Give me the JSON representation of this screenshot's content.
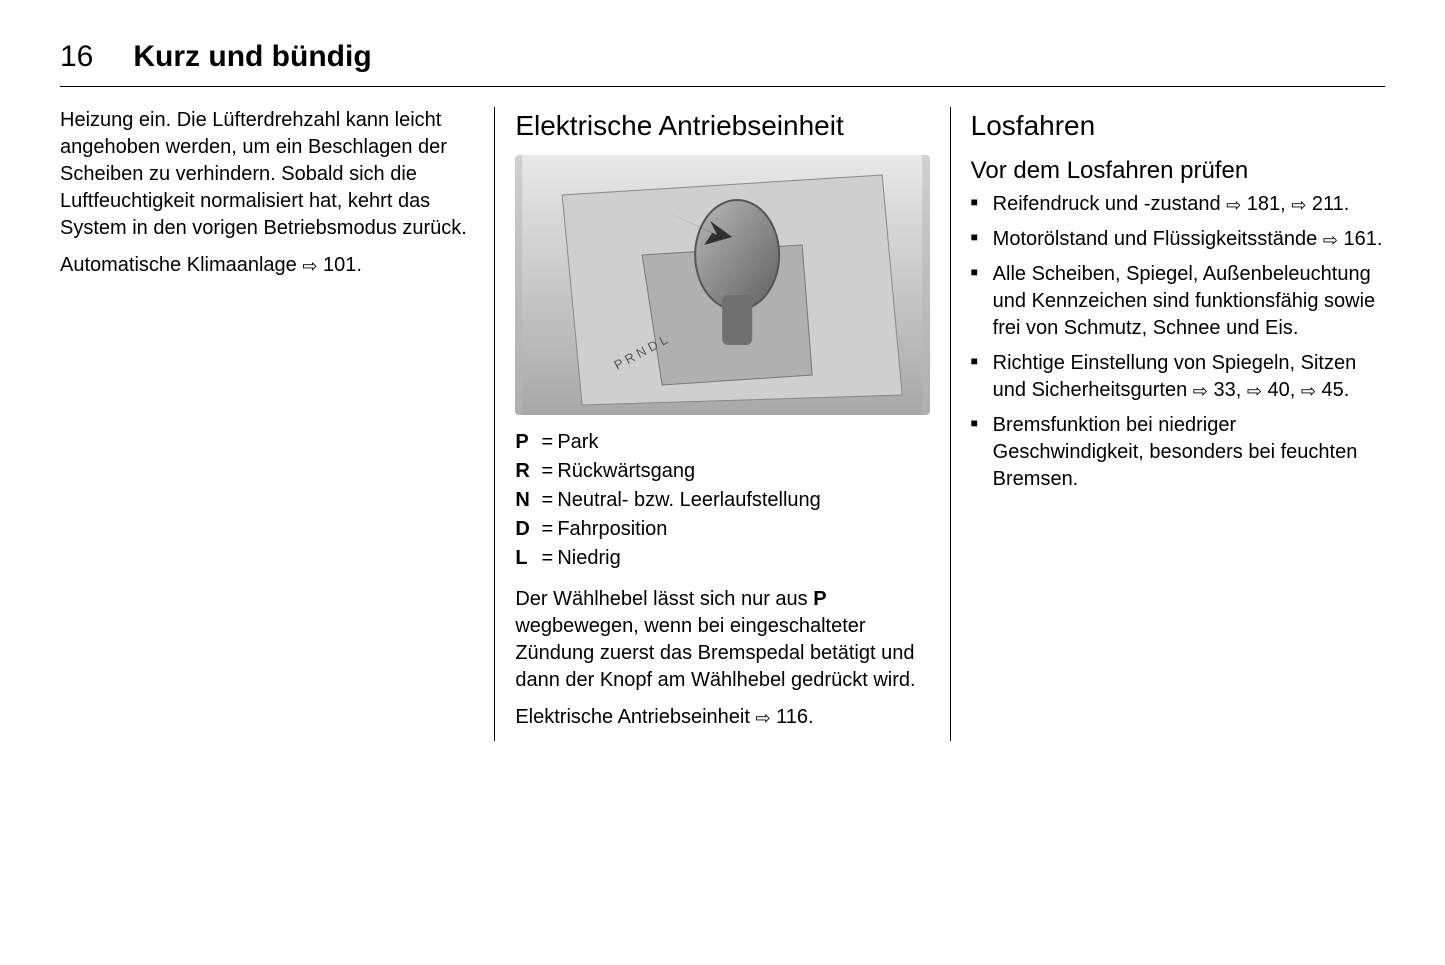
{
  "header": {
    "page_number": "16",
    "chapter": "Kurz und bündig"
  },
  "col1": {
    "para1": "Heizung ein. Die Lüfterdrehzahl kann leicht angehoben werden, um ein Beschlagen der Scheiben zu verhindern. Sobald sich die Luftfeuchtigkeit normalisiert hat, kehrt das System in den vorigen Betriebsmodus zurück.",
    "para2_pre": "Automatische Klimaanlage ",
    "para2_ref": "101."
  },
  "col2": {
    "heading": "Elektrische Antriebseinheit",
    "gears": [
      {
        "key": "P",
        "val": "Park"
      },
      {
        "key": "R",
        "val": "Rückwärtsgang"
      },
      {
        "key": "N",
        "val": "Neutral- bzw. Leerlaufstellung"
      },
      {
        "key": "D",
        "val": "Fahrposition"
      },
      {
        "key": "L",
        "val": "Niedrig"
      }
    ],
    "para1_a": "Der Wählhebel lässt sich nur aus ",
    "para1_bold": "P",
    "para1_b": " wegbewegen, wenn bei eingeschalteter Zündung zuerst das Bremspedal betätigt und dann der Knopf am Wählhebel gedrückt wird.",
    "para2_pre": "Elektrische Antriebseinheit ",
    "para2_ref": "116."
  },
  "col3": {
    "heading": "Losfahren",
    "subheading": "Vor dem Losfahren prüfen",
    "items": [
      {
        "pre": "Reifendruck und -zustand ",
        "refs": [
          "181,",
          "211."
        ]
      },
      {
        "pre": "Motorölstand und Flüssigkeitsstände ",
        "refs": [
          "161."
        ]
      },
      {
        "text": "Alle Scheiben, Spiegel, Außenbeleuchtung und Kennzeichen sind funktionsfähig sowie frei von Schmutz, Schnee und Eis."
      },
      {
        "pre": "Richtige Einstellung von Spiegeln, Sitzen und Sicherheitsgurten ",
        "refs": [
          "33,",
          "40,",
          "45."
        ]
      },
      {
        "text": "Bremsfunktion bei niedriger Geschwindigkeit, besonders bei feuchten Bremsen."
      }
    ]
  },
  "ref_glyph": "⇨",
  "colors": {
    "text": "#000000",
    "bg": "#ffffff",
    "rule": "#000000",
    "figure_bg_top": "#d0d0d0",
    "figure_bg_bot": "#b0b0b0"
  }
}
